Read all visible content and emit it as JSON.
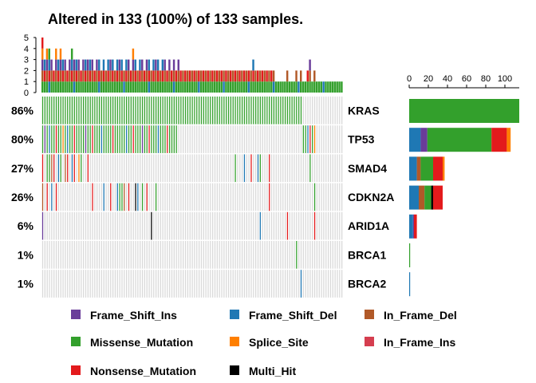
{
  "chart_data": {
    "type": "heatmap",
    "title": "Altered in 133 (100%) of 133 samples.",
    "n_samples": 133,
    "genes": [
      "KRAS",
      "TP53",
      "SMAD4",
      "CDKN2A",
      "ARID1A",
      "BRCA1",
      "BRCA2"
    ],
    "percent_labels": [
      "86%",
      "80%",
      "27%",
      "26%",
      "6%",
      "1%",
      "1%"
    ],
    "top_bar_axis": {
      "ticks": [
        "0",
        "1",
        "2",
        "3",
        "4",
        "5"
      ],
      "range": [
        0,
        5
      ]
    },
    "side_bar_axis": {
      "ticks": [
        "0",
        "20",
        "40",
        "60",
        "80",
        "100"
      ],
      "range": [
        0,
        115
      ]
    },
    "variant_classes": [
      "Frame_Shift_Ins",
      "Frame_Shift_Del",
      "In_Frame_Del",
      "Missense_Mutation",
      "Splice_Site",
      "In_Frame_Ins",
      "Nonsense_Mutation",
      "Multi_Hit"
    ],
    "colors": {
      "Frame_Shift_Ins": "#6a3d9a",
      "Frame_Shift_Del": "#1f78b4",
      "In_Frame_Del": "#b15928",
      "Missense_Mutation": "#33a02c",
      "Splice_Site": "#ff7f00",
      "In_Frame_Ins": "#d53e4f",
      "Nonsense_Mutation": "#e31a1c",
      "Multi_Hit": "#000000",
      "background": "#d9d9d9"
    },
    "gene_counts": [
      {
        "gene": "KRAS",
        "Missense_Mutation": 115
      },
      {
        "gene": "TP53",
        "Frame_Shift_Del": 12,
        "Frame_Shift_Ins": 7,
        "Missense_Mutation": 67,
        "Nonsense_Mutation": 16,
        "Splice_Site": 4
      },
      {
        "gene": "SMAD4",
        "Frame_Shift_Del": 8,
        "In_Frame_Del": 4,
        "Missense_Mutation": 13,
        "Nonsense_Mutation": 10,
        "Splice_Site": 2
      },
      {
        "gene": "CDKN2A",
        "Frame_Shift_Del": 10,
        "In_Frame_Del": 6,
        "Missense_Mutation": 7,
        "Multi_Hit": 2,
        "Nonsense_Mutation": 10
      },
      {
        "gene": "ARID1A",
        "Frame_Shift_Del": 4,
        "Frame_Shift_Ins": 1,
        "Nonsense_Mutation": 3
      },
      {
        "gene": "BRCA1",
        "Missense_Mutation": 1
      },
      {
        "gene": "BRCA2",
        "Frame_Shift_Del": 1
      }
    ],
    "matrix": {
      "KRAS": {
        "Missense_Mutation": [
          [
            0,
            114
          ]
        ]
      },
      "TP53": {
        "Missense_Mutation": [
          [
            0,
            59
          ],
          [
            115,
            120
          ]
        ],
        "Nonsense_Mutation": [
          [
            6,
            6
          ],
          [
            14,
            14
          ],
          [
            22,
            22
          ],
          [
            31,
            31
          ],
          [
            40,
            40
          ],
          [
            47,
            47
          ],
          [
            55,
            55
          ],
          [
            118,
            118
          ]
        ],
        "Frame_Shift_Del": [
          [
            3,
            3
          ],
          [
            11,
            11
          ],
          [
            26,
            26
          ],
          [
            37,
            37
          ],
          [
            51,
            51
          ],
          [
            117,
            117
          ]
        ],
        "Frame_Shift_Ins": [
          [
            1,
            1
          ],
          [
            19,
            19
          ],
          [
            44,
            44
          ]
        ],
        "Splice_Site": [
          [
            9,
            9
          ],
          [
            120,
            120
          ]
        ]
      },
      "SMAD4": {
        "Missense_Mutation": [
          [
            2,
            3
          ],
          [
            8,
            8
          ],
          [
            17,
            17
          ],
          [
            85,
            85
          ],
          [
            96,
            96
          ],
          [
            118,
            118
          ]
        ],
        "Nonsense_Mutation": [
          [
            0,
            0
          ],
          [
            5,
            5
          ],
          [
            11,
            11
          ],
          [
            14,
            14
          ],
          [
            20,
            20
          ],
          [
            92,
            92
          ],
          [
            100,
            100
          ]
        ],
        "Frame_Shift_Del": [
          [
            7,
            7
          ],
          [
            13,
            13
          ],
          [
            89,
            89
          ],
          [
            95,
            95
          ]
        ],
        "In_Frame_Del": [
          [
            4,
            4
          ],
          [
            10,
            10
          ]
        ],
        "Splice_Site": [
          [
            16,
            16
          ]
        ]
      },
      "CDKN2A": {
        "Missense_Mutation": [
          [
            34,
            35
          ],
          [
            44,
            44
          ],
          [
            50,
            50
          ],
          [
            120,
            120
          ]
        ],
        "Nonsense_Mutation": [
          [
            2,
            2
          ],
          [
            6,
            6
          ],
          [
            22,
            22
          ],
          [
            30,
            30
          ],
          [
            38,
            38
          ],
          [
            46,
            46
          ],
          [
            100,
            100
          ]
        ],
        "Frame_Shift_Del": [
          [
            4,
            4
          ],
          [
            27,
            27
          ],
          [
            33,
            33
          ],
          [
            42,
            42
          ]
        ],
        "In_Frame_Del": [
          [
            0,
            0
          ],
          [
            36,
            36
          ]
        ],
        "Multi_Hit": [
          [
            41,
            41
          ]
        ]
      },
      "ARID1A": {
        "Frame_Shift_Ins": [
          [
            0,
            0
          ]
        ],
        "Frame_Shift_Del": [
          [
            96,
            96
          ]
        ],
        "Nonsense_Mutation": [
          [
            108,
            108
          ],
          [
            120,
            120
          ]
        ],
        "Multi_Hit": [
          [
            48,
            48
          ]
        ]
      },
      "BRCA1": {
        "Missense_Mutation": [
          [
            112,
            112
          ]
        ]
      },
      "BRCA2": {
        "Frame_Shift_Del": [
          [
            114,
            114
          ]
        ]
      }
    },
    "top_bar_counts": [
      5,
      3,
      4,
      4,
      3,
      2,
      4,
      3,
      4,
      3,
      3,
      2,
      3,
      4,
      3,
      3,
      3,
      2,
      3,
      3,
      3,
      3,
      3,
      2,
      3,
      3,
      2,
      3,
      2,
      3,
      3,
      3,
      2,
      3,
      3,
      3,
      2,
      3,
      3,
      2,
      4,
      3,
      2,
      3,
      3,
      2,
      3,
      3,
      2,
      3,
      3,
      3,
      2,
      3,
      3,
      2,
      3,
      2,
      3,
      2,
      3,
      2,
      2,
      2,
      2,
      2,
      2,
      2,
      2,
      2,
      2,
      2,
      2,
      2,
      2,
      2,
      2,
      2,
      2,
      2,
      2,
      2,
      2,
      2,
      2,
      2,
      2,
      2,
      2,
      2,
      2,
      2,
      2,
      3,
      2,
      2,
      2,
      2,
      2,
      2,
      2,
      2,
      2,
      1,
      1,
      1,
      1,
      1,
      2,
      1,
      1,
      1,
      2,
      1,
      2,
      1,
      1,
      2,
      3,
      1,
      2,
      1,
      1,
      1,
      1,
      1,
      1,
      1,
      1,
      1,
      1,
      1,
      1
    ]
  }
}
